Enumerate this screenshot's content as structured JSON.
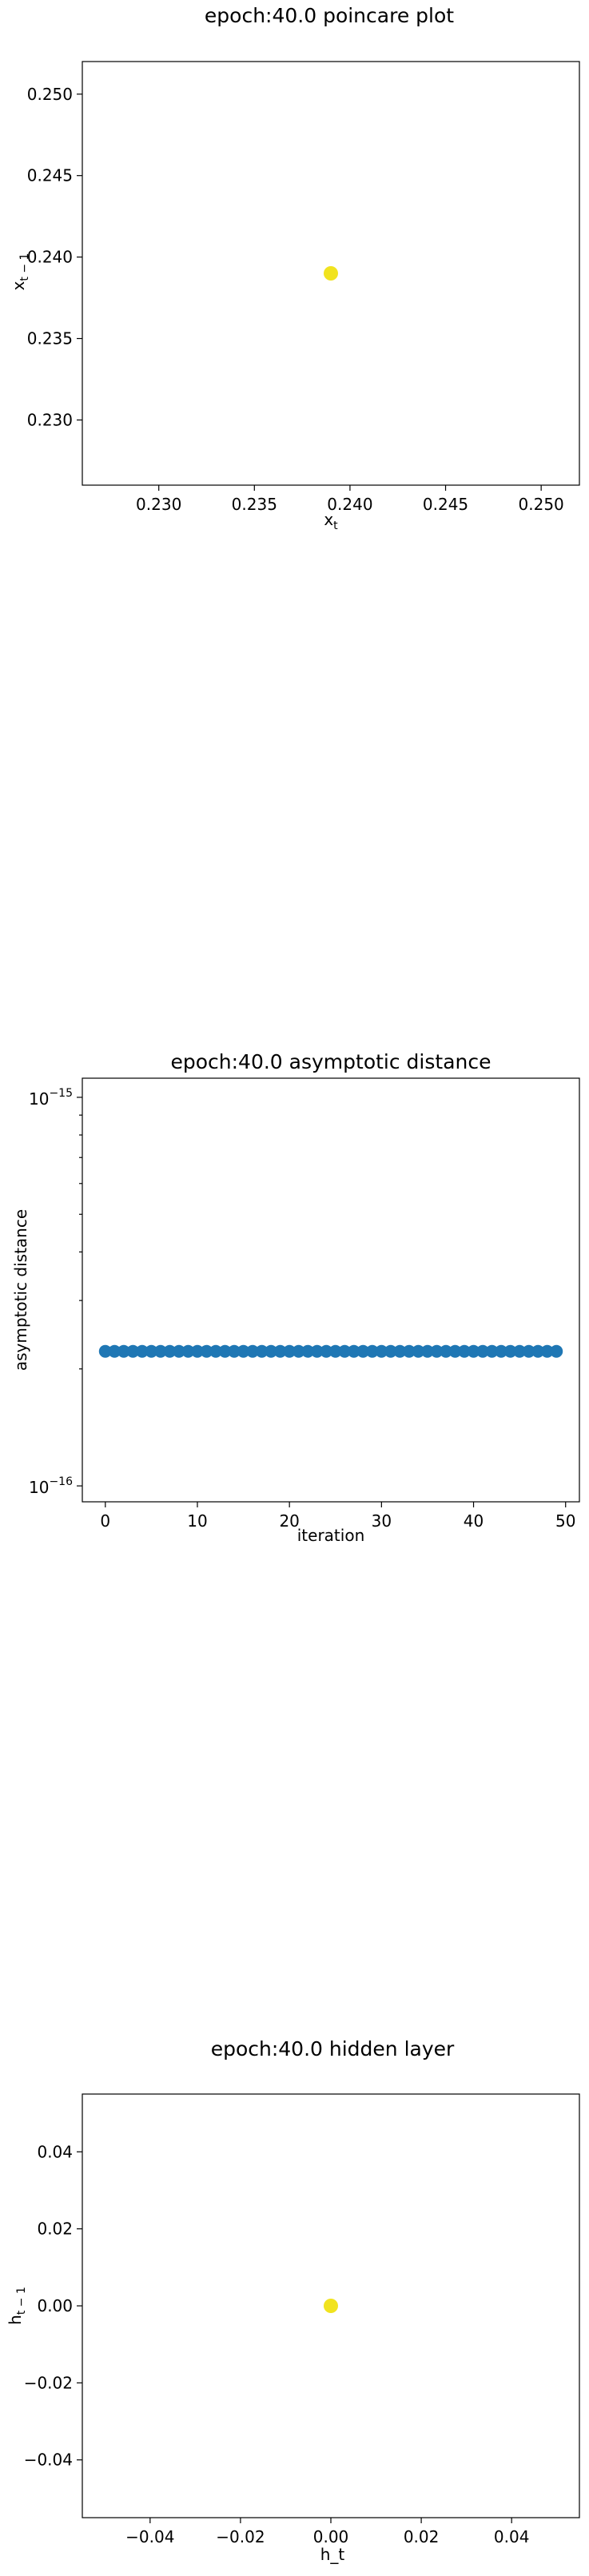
{
  "chart_data": [
    {
      "type": "scatter",
      "title": "epoch:40.0 poincare plot",
      "xlabel": "x_t",
      "ylabel": "x_{t-1}",
      "xlim": [
        0.226,
        0.252
      ],
      "ylim": [
        0.226,
        0.252
      ],
      "xticks": [
        0.23,
        0.235,
        0.24,
        0.245,
        0.25
      ],
      "xtick_labels": [
        "0.230",
        "0.235",
        "0.240",
        "0.245",
        "0.250"
      ],
      "yticks": [
        0.23,
        0.235,
        0.24,
        0.245,
        0.25
      ],
      "ytick_labels": [
        "0.230",
        "0.235",
        "0.240",
        "0.245",
        "0.250"
      ],
      "points": [
        {
          "x": 0.239,
          "y": 0.239
        }
      ],
      "color": "#f1e31f",
      "grid": false
    },
    {
      "type": "scatter",
      "title": "epoch:40.0 asymptotic distance",
      "xlabel": "iteration",
      "ylabel": "asymptotic distance",
      "yscale": "log",
      "xlim": [
        -2.5,
        51.5
      ],
      "ylim": [
        9.1e-17,
        1.12e-15
      ],
      "xticks": [
        0,
        10,
        20,
        30,
        40,
        50
      ],
      "xtick_labels": [
        "0",
        "10",
        "20",
        "30",
        "40",
        "50"
      ],
      "yticks": [
        1e-16,
        1e-15
      ],
      "ytick_label_base": "10",
      "ytick_label_exps": [
        "−16",
        "−15"
      ],
      "x": [
        0,
        1,
        2,
        3,
        4,
        5,
        6,
        7,
        8,
        9,
        10,
        11,
        12,
        13,
        14,
        15,
        16,
        17,
        18,
        19,
        20,
        21,
        22,
        23,
        24,
        25,
        26,
        27,
        28,
        29,
        30,
        31,
        32,
        33,
        34,
        35,
        36,
        37,
        38,
        39,
        40,
        41,
        42,
        43,
        44,
        45,
        46,
        47,
        48,
        49
      ],
      "y_constant": 2.22e-16,
      "color": "#1f77b4",
      "grid": false
    },
    {
      "type": "scatter",
      "title": "epoch:40.0 hidden layer",
      "xlabel": "h_t",
      "ylabel": "h_{t-1}",
      "xlim": [
        -0.055,
        0.055
      ],
      "ylim": [
        -0.055,
        0.055
      ],
      "xticks": [
        -0.04,
        -0.02,
        0.0,
        0.02,
        0.04
      ],
      "xtick_labels": [
        "−0.04",
        "−0.02",
        "0.00",
        "0.02",
        "0.04"
      ],
      "yticks": [
        -0.04,
        -0.02,
        0.0,
        0.02,
        0.04
      ],
      "ytick_labels": [
        "−0.04",
        "−0.02",
        "0.00",
        "0.02",
        "0.04"
      ],
      "points": [
        {
          "x": 0.0,
          "y": 0.0
        }
      ],
      "color": "#f1e31f",
      "grid": false
    }
  ]
}
